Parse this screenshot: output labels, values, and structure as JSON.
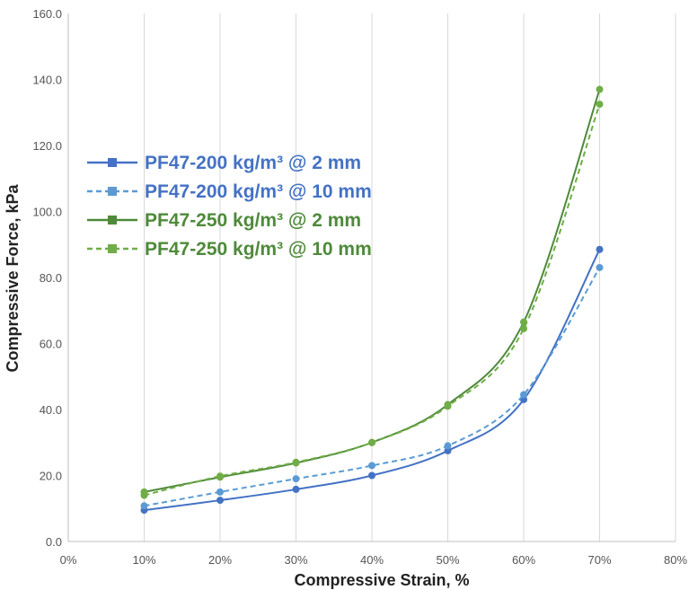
{
  "chart_data": {
    "type": "line",
    "title": "",
    "xlabel": "Compressive Strain, %",
    "ylabel": "Compressive Force, kPa",
    "xlim": [
      0,
      80
    ],
    "ylim": [
      0,
      160
    ],
    "x_ticks": [
      "0%",
      "10%",
      "20%",
      "30%",
      "40%",
      "50%",
      "60%",
      "70%",
      "80%"
    ],
    "y_ticks": [
      "0.0",
      "20.0",
      "40.0",
      "60.0",
      "80.0",
      "100.0",
      "120.0",
      "140.0",
      "160.0"
    ],
    "grid": "vertical",
    "legend_position": "upper-left",
    "x": [
      10,
      20,
      30,
      40,
      50,
      60,
      70
    ],
    "series": [
      {
        "name": "PF47-200 kg/m³ @ 2 mm",
        "color": "#4472C4",
        "marker_color": "#4472C4",
        "dash": "solid",
        "values": [
          9.5,
          12.5,
          15.8,
          20.0,
          27.5,
          43.0,
          88.5
        ]
      },
      {
        "name": "PF47-200 kg/m³ @ 10 mm",
        "color": "#5B9BD5",
        "marker_color": "#5B9BD5",
        "dash": "dashed",
        "values": [
          10.8,
          15.0,
          19.0,
          23.0,
          29.0,
          44.5,
          83.0
        ]
      },
      {
        "name": "PF47-250 kg/m³ @ 2 mm",
        "color": "#4E8A3A",
        "marker_color": "#70AD47",
        "dash": "solid",
        "values": [
          15.0,
          19.5,
          23.8,
          30.0,
          41.5,
          66.5,
          137.0
        ]
      },
      {
        "name": "PF47-250 kg/m³ @ 10 mm",
        "color": "#70AD47",
        "marker_color": "#70AD47",
        "dash": "dashed",
        "values": [
          14.0,
          19.8,
          24.0,
          30.0,
          41.0,
          64.5,
          132.5
        ]
      }
    ]
  }
}
